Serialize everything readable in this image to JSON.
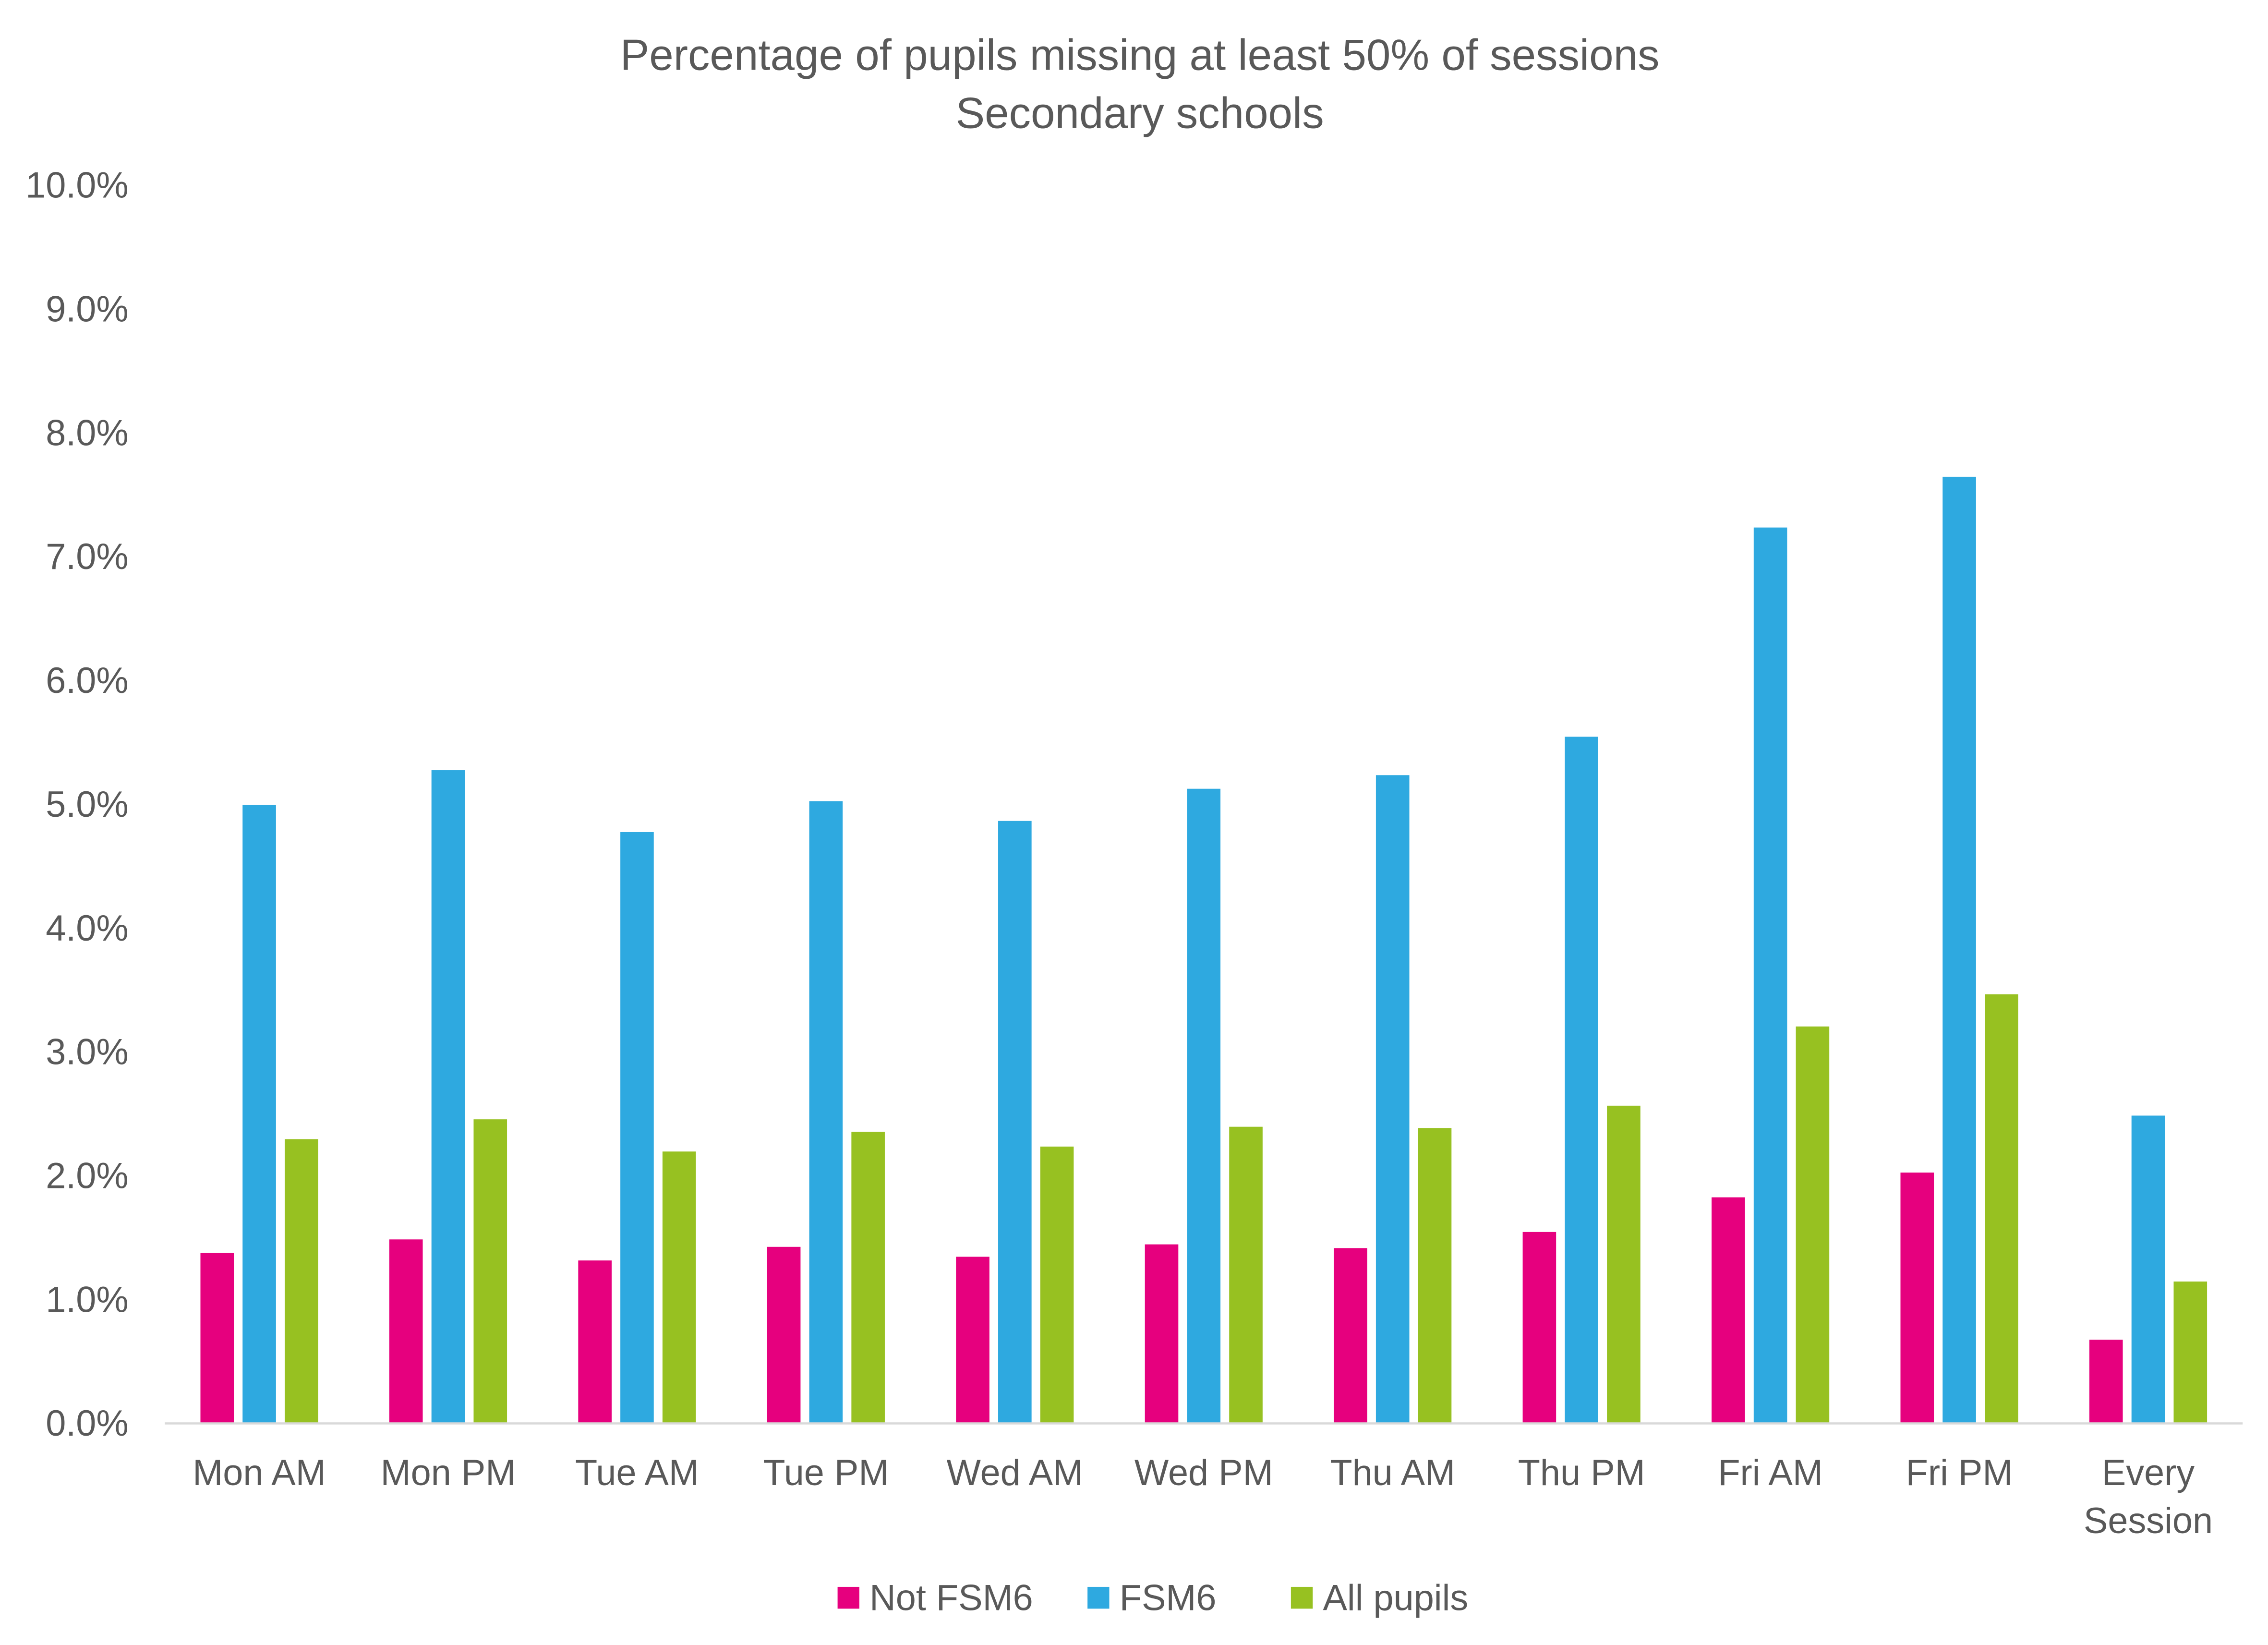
{
  "chart_data": {
    "type": "bar",
    "title": "Percentage of pupils missing at least 50% of sessions",
    "subtitle": "Secondary schools",
    "xlabel": "",
    "ylabel": "",
    "ylim": [
      0,
      10
    ],
    "yticks": [
      "0.0%",
      "1.0%",
      "2.0%",
      "3.0%",
      "4.0%",
      "5.0%",
      "6.0%",
      "7.0%",
      "8.0%",
      "9.0%",
      "10.0%"
    ],
    "grid": false,
    "legend_position": "bottom",
    "categories": [
      [
        "Mon AM"
      ],
      [
        "Mon PM"
      ],
      [
        "Tue AM"
      ],
      [
        "Tue PM"
      ],
      [
        "Wed AM"
      ],
      [
        "Wed PM"
      ],
      [
        "Thu AM"
      ],
      [
        "Thu PM"
      ],
      [
        "Fri AM"
      ],
      [
        "Fri PM"
      ],
      [
        "Every",
        "Session"
      ]
    ],
    "series": [
      {
        "name": "Not FSM6",
        "color": "#E6007E",
        "values": [
          1.37,
          1.48,
          1.31,
          1.42,
          1.34,
          1.44,
          1.41,
          1.54,
          1.82,
          2.02,
          0.67
        ]
      },
      {
        "name": "FSM6",
        "color": "#2EA9E0",
        "values": [
          4.99,
          5.27,
          4.77,
          5.02,
          4.86,
          5.12,
          5.23,
          5.54,
          7.23,
          7.64,
          2.48
        ]
      },
      {
        "name": "All pupils",
        "color": "#97C121",
        "values": [
          2.29,
          2.45,
          2.19,
          2.35,
          2.23,
          2.39,
          2.38,
          2.56,
          3.2,
          3.46,
          1.14
        ]
      }
    ]
  }
}
